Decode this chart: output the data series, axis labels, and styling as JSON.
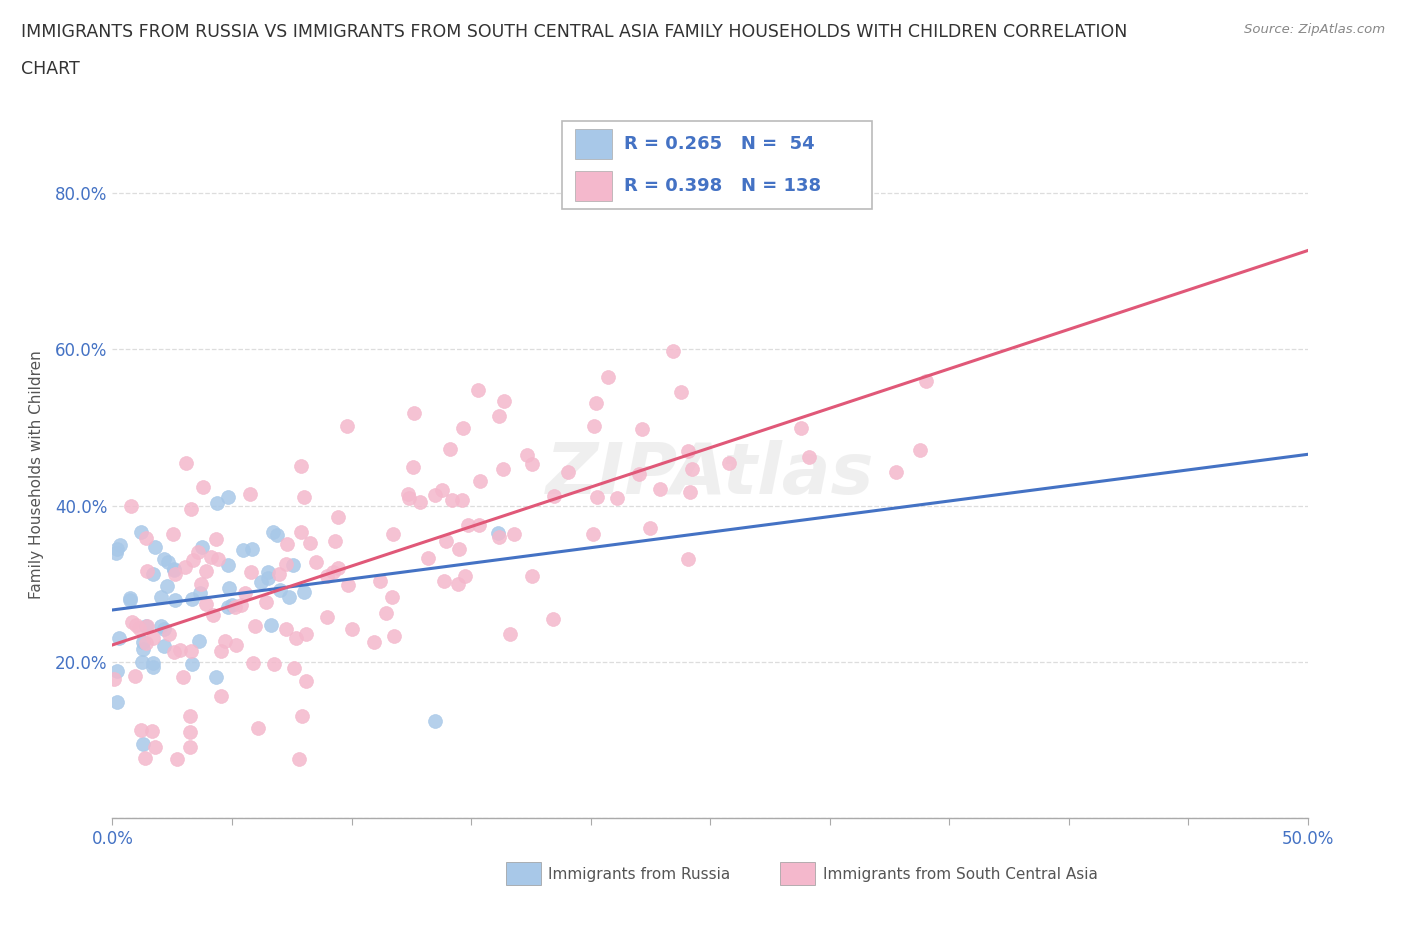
{
  "title_line1": "IMMIGRANTS FROM RUSSIA VS IMMIGRANTS FROM SOUTH CENTRAL ASIA FAMILY HOUSEHOLDS WITH CHILDREN CORRELATION",
  "title_line2": "CHART",
  "source": "Source: ZipAtlas.com",
  "ylabel": "Family Households with Children",
  "legend_label1": "Immigrants from Russia",
  "legend_label2": "Immigrants from South Central Asia",
  "R1": 0.265,
  "N1": 54,
  "R2": 0.398,
  "N2": 138,
  "color1": "#a8c8e8",
  "color2": "#f4b8cc",
  "line_color1": "#4472c4",
  "line_color2": "#e05878",
  "xmin": 0.0,
  "xmax": 0.5,
  "ymin": 0.0,
  "ymax": 0.88,
  "yticks": [
    0.0,
    0.2,
    0.4,
    0.6,
    0.8
  ],
  "ytick_labels": [
    "",
    "20.0%",
    "40.0%",
    "60.0%",
    "80.0%"
  ],
  "xticks": [
    0.0,
    0.05,
    0.1,
    0.15,
    0.2,
    0.25,
    0.3,
    0.35,
    0.4,
    0.45,
    0.5
  ],
  "xtick_labels": [
    "0.0%",
    "",
    "",
    "",
    "",
    "",
    "",
    "",
    "",
    "",
    "50.0%"
  ],
  "background_color": "#ffffff",
  "grid_color": "#dddddd",
  "tick_color": "#4472c4",
  "label_color": "#555555",
  "title_color": "#333333"
}
